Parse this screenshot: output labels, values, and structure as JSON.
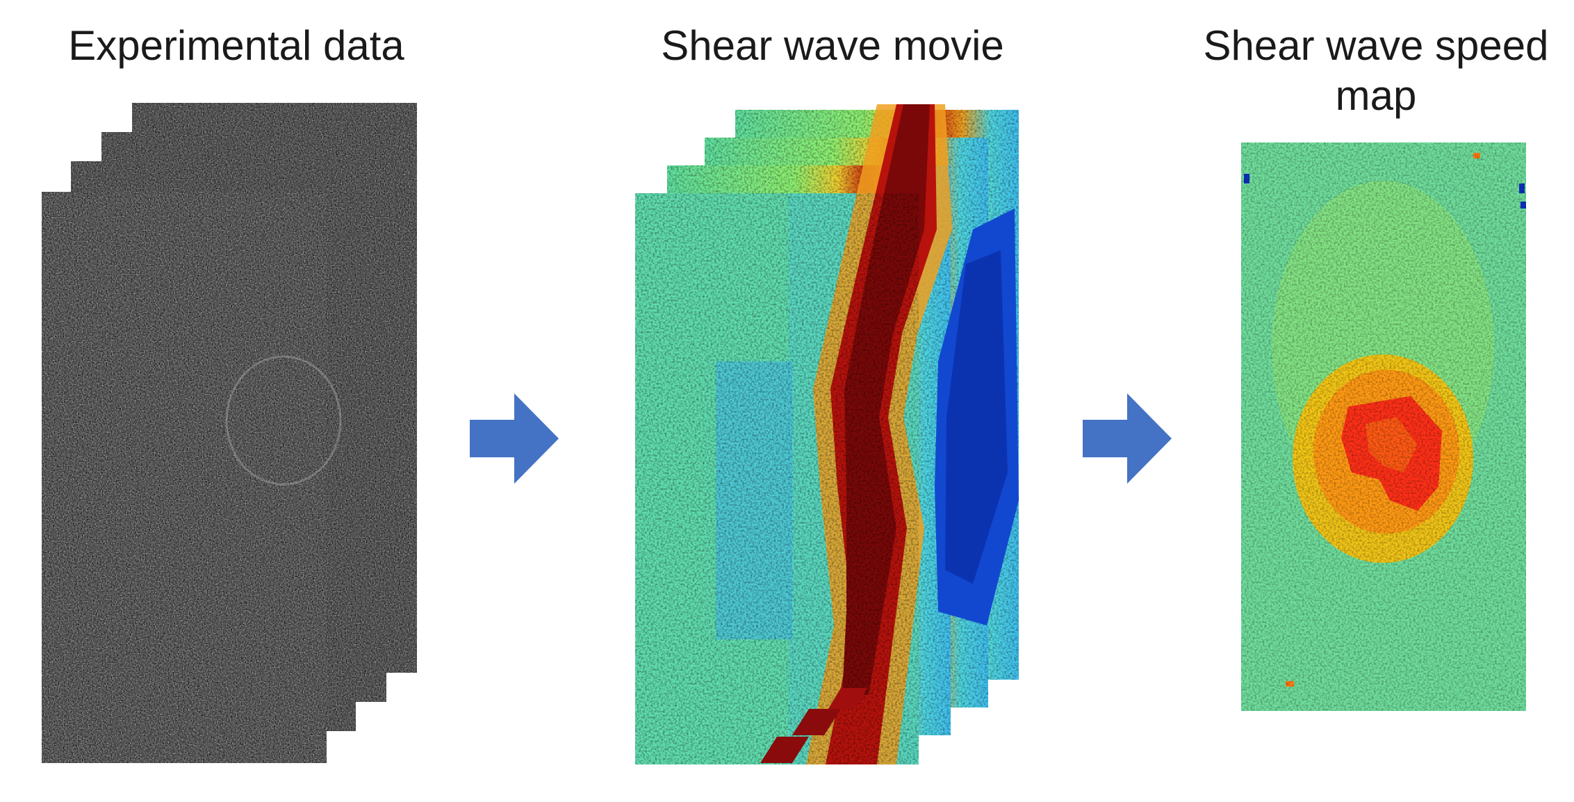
{
  "panels": {
    "experimental": {
      "title": "Experimental data",
      "frame_count": 4
    },
    "movie": {
      "title": "Shear wave movie",
      "frame_count": 4
    },
    "speed_map": {
      "title_line1": "Shear wave speed",
      "title_line2": "map"
    }
  },
  "arrows": {
    "color": "#4472c4",
    "count": 2
  },
  "colormap": {
    "name": "jet"
  }
}
